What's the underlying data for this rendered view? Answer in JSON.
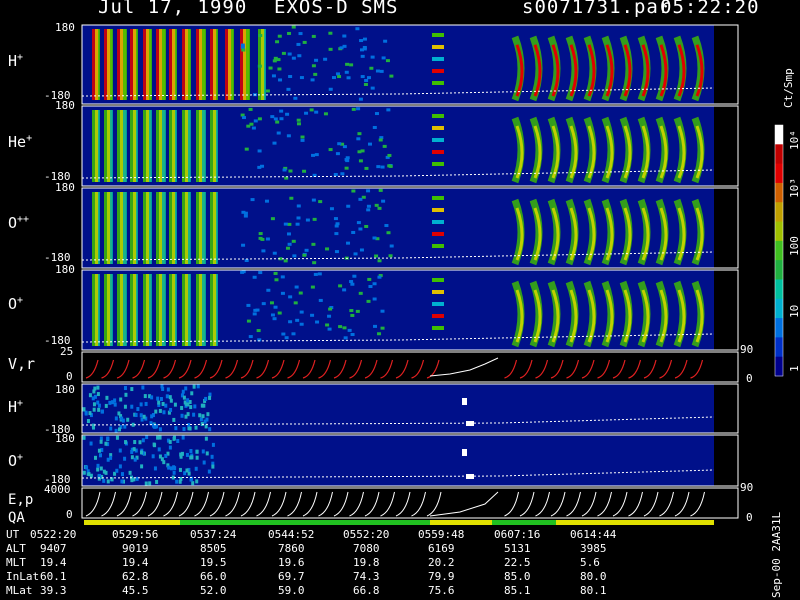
{
  "header": {
    "date": "Jul 17, 1990",
    "instrument": "EXOS-D SMS",
    "file": "s0071731.par",
    "time": "05:22:20"
  },
  "panels": [
    {
      "label": "H",
      "sup": "+",
      "top": "180",
      "bottom": "-180"
    },
    {
      "label": "He",
      "sup": "+",
      "top": "180",
      "bottom": "-180"
    },
    {
      "label": "O",
      "sup": "++",
      "top": "180",
      "bottom": "-180"
    },
    {
      "label": "O",
      "sup": "+",
      "top": "180",
      "bottom": "-180"
    },
    {
      "label": "V,r",
      "sup": "",
      "top": "25",
      "bottom": "0"
    },
    {
      "label": "H",
      "sup": "+",
      "top": "180",
      "bottom": "-180"
    },
    {
      "label": "O",
      "sup": "+",
      "top": "180",
      "bottom": "-180"
    },
    {
      "label": "E,p",
      "sup": "",
      "top": "4000",
      "bottom": "0"
    }
  ],
  "qa_label": "QA",
  "right_axis": {
    "vr": {
      "top": "90",
      "bottom": "0"
    },
    "ep": {
      "top": "90",
      "bottom": "0"
    }
  },
  "colorbar": {
    "unit": "Ct/Smp",
    "ticks": [
      "1",
      "10",
      "100",
      "10³",
      "10⁴"
    ],
    "colors": [
      "#00008c",
      "#0030c8",
      "#0070e0",
      "#00b0d0",
      "#00c0a0",
      "#20b040",
      "#40c020",
      "#a0c000",
      "#c0a000",
      "#d06000",
      "#e00000",
      "#c00000",
      "#ffffff"
    ]
  },
  "footer": {
    "rows": [
      {
        "label": "UT",
        "values": [
          "0522:20",
          "0529:56",
          "0537:24",
          "0544:52",
          "0552:20",
          "0559:48",
          "0607:16",
          "0614:44"
        ]
      },
      {
        "label": "ALT",
        "values": [
          "9407",
          "9019",
          "8505",
          "7860",
          "7080",
          "6169",
          "5131",
          "3985"
        ]
      },
      {
        "label": "MLT",
        "values": [
          "19.4",
          "19.4",
          "19.5",
          "19.6",
          "19.8",
          "20.2",
          "22.5",
          "5.6"
        ]
      },
      {
        "label": "InLat",
        "values": [
          "60.1",
          "62.8",
          "66.0",
          "69.7",
          "74.3",
          "79.9",
          "85.0",
          "80.0"
        ]
      },
      {
        "label": "MLat",
        "values": [
          "39.3",
          "45.5",
          "52.0",
          "59.0",
          "66.8",
          "75.6",
          "85.1",
          "80.1"
        ]
      }
    ],
    "version": "Sep-00 2AA31L"
  },
  "chart_data": {
    "type": "heatmap",
    "title": "Jul 17, 1990   EXOS-D SMS",
    "x_ticks": [
      "0522:20",
      "0529:56",
      "0537:24",
      "0544:52",
      "0552:20",
      "0559:48",
      "0607:16",
      "0614:44"
    ],
    "series": [
      {
        "name": "H+",
        "ylim": [
          -180,
          180
        ]
      },
      {
        "name": "He+",
        "ylim": [
          -180,
          180
        ]
      },
      {
        "name": "O++",
        "ylim": [
          -180,
          180
        ]
      },
      {
        "name": "O+",
        "ylim": [
          -180,
          180
        ]
      },
      {
        "name": "V,r",
        "ylim": [
          0,
          25
        ]
      },
      {
        "name": "H+",
        "ylim": [
          -180,
          180
        ]
      },
      {
        "name": "O+",
        "ylim": [
          -180,
          180
        ]
      },
      {
        "name": "E,p",
        "ylim": [
          0,
          4000
        ]
      }
    ],
    "colorbar_ticks": [
      "1",
      "10",
      "100",
      "10³",
      "10⁴"
    ]
  }
}
